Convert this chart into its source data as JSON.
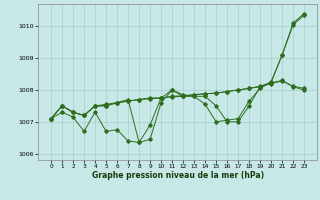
{
  "x": [
    0,
    1,
    2,
    3,
    4,
    5,
    6,
    7,
    8,
    9,
    10,
    11,
    12,
    13,
    14,
    15,
    16,
    17,
    18,
    19,
    20,
    21,
    22,
    23
  ],
  "series1": [
    1007.1,
    1007.5,
    1007.3,
    1007.2,
    1007.5,
    1007.5,
    1007.6,
    1007.65,
    1007.7,
    1007.75,
    1007.75,
    1007.8,
    1007.82,
    1007.85,
    1007.88,
    1007.9,
    1007.95,
    1008.0,
    1008.05,
    1008.1,
    1008.2,
    1008.28,
    1008.12,
    1008.05
  ],
  "series2": [
    1007.1,
    1007.5,
    1007.3,
    1007.2,
    1007.5,
    1007.55,
    1007.6,
    1007.65,
    1007.7,
    1007.72,
    1007.75,
    1007.78,
    1007.8,
    1007.85,
    1007.88,
    1007.9,
    1007.95,
    1008.0,
    1008.05,
    1008.12,
    1008.22,
    1008.3,
    1008.1,
    1008.0
  ],
  "series3": [
    1007.1,
    1007.5,
    1007.3,
    1007.2,
    1007.5,
    1007.5,
    1007.6,
    1007.7,
    1006.35,
    1006.45,
    1007.6,
    1008.0,
    1007.8,
    1007.8,
    1007.8,
    1007.5,
    1007.0,
    1007.0,
    1007.5,
    1008.1,
    1008.25,
    1009.1,
    1010.05,
    1010.35
  ],
  "series4": [
    1007.1,
    1007.3,
    1007.15,
    1006.7,
    1007.3,
    1006.7,
    1006.75,
    1006.4,
    1006.35,
    1006.9,
    1007.75,
    1008.0,
    1007.85,
    1007.8,
    1007.55,
    1007.0,
    1007.05,
    1007.1,
    1007.65,
    1008.05,
    1008.25,
    1009.1,
    1010.1,
    1010.4
  ],
  "line_color": "#2d6e1e",
  "bg_color": "#c8e8e8",
  "grid_color": "#a8cccc",
  "xlabel": "Graphe pression niveau de la mer (hPa)",
  "ylim": [
    1005.8,
    1010.7
  ],
  "yticks": [
    1006,
    1007,
    1008,
    1009,
    1010
  ],
  "xticks": [
    0,
    1,
    2,
    3,
    4,
    5,
    6,
    7,
    8,
    9,
    10,
    11,
    12,
    13,
    14,
    15,
    16,
    17,
    18,
    19,
    20,
    21,
    22,
    23
  ]
}
